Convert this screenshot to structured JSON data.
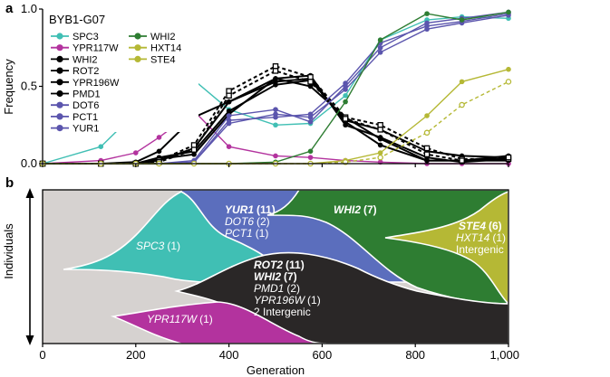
{
  "chart_data": [
    {
      "panel": "a",
      "type": "line",
      "title": "BYB1-G07",
      "xlabel": "",
      "ylabel": "Frequency",
      "xlim": [
        0,
        1000
      ],
      "ylim": [
        0,
        1.0
      ],
      "yticks": [
        "0.0",
        "0.5",
        "1.0"
      ],
      "legend": [
        [
          "SPC3",
          "YPR117W",
          "WHI2",
          "ROT2",
          "YPR196W",
          "PMD1",
          "DOT6",
          "PCT1",
          "YUR1"
        ],
        [
          "WHI2",
          "HXT14",
          "STE4"
        ]
      ],
      "series": [
        {
          "name": "SPC3",
          "color": "#40bfb4",
          "marker": "circle",
          "x": [
            0,
            125,
            200,
            250,
            325,
            400,
            500,
            575,
            650,
            725,
            825,
            900,
            1000
          ],
          "y": [
            0,
            0.11,
            0.33,
            0.45,
            0.54,
            0.35,
            0.25,
            0.26,
            0.44,
            0.8,
            0.93,
            0.95,
            0.94
          ]
        },
        {
          "name": "YPR117W",
          "color": "#b3339e",
          "marker": "circle",
          "x": [
            0,
            125,
            200,
            250,
            325,
            400,
            500,
            575,
            650,
            725,
            825,
            900,
            1000
          ],
          "y": [
            0,
            0.02,
            0.07,
            0.17,
            0.34,
            0.11,
            0.05,
            0.04,
            0.02,
            0.01,
            0,
            0,
            0
          ]
        },
        {
          "name": "WHI2",
          "color": "#000000",
          "marker": "circle",
          "x": [
            0,
            125,
            200,
            250,
            325,
            400,
            500,
            575,
            650,
            725,
            825,
            900,
            1000
          ],
          "y": [
            0,
            0,
            0.01,
            0.08,
            0.3,
            0.4,
            0.55,
            0.5,
            0.3,
            0.16,
            0.02,
            0.02,
            0.02
          ]
        },
        {
          "name": "ROT2",
          "color": "#000000",
          "marker": "circle",
          "x": [
            0,
            125,
            200,
            250,
            325,
            400,
            500,
            575,
            650,
            725,
            825,
            900,
            1000
          ],
          "y": [
            0,
            0,
            0,
            0.04,
            0.08,
            0.34,
            0.51,
            0.54,
            0.28,
            0.22,
            0.08,
            0.05,
            0.04
          ]
        },
        {
          "name": "YPR196W",
          "color": "#000000",
          "marker": "circle",
          "x": [
            0,
            125,
            200,
            250,
            325,
            400,
            500,
            575,
            650,
            725,
            825,
            900,
            1000
          ],
          "y": [
            0,
            0,
            0,
            0.03,
            0.06,
            0.32,
            0.55,
            0.57,
            0.25,
            0.17,
            0.04,
            0.01,
            0.03
          ]
        },
        {
          "name": "PMD1",
          "color": "#000000",
          "marker": "circle",
          "x": [
            0,
            125,
            200,
            250,
            325,
            400,
            500,
            575,
            650,
            725,
            825,
            900,
            1000
          ],
          "y": [
            0,
            0,
            0,
            0.02,
            0.1,
            0.4,
            0.53,
            0.55,
            0.27,
            0.12,
            0.02,
            0.02,
            0.05
          ]
        },
        {
          "name": "dashed-1",
          "color": "#000000",
          "marker": "square-open",
          "dashed": true,
          "x": [
            0,
            125,
            200,
            250,
            325,
            400,
            500,
            575,
            650,
            725,
            825,
            900,
            1000
          ],
          "y": [
            0,
            0,
            0,
            0.02,
            0.12,
            0.47,
            0.63,
            0.56,
            0.3,
            0.25,
            0.1,
            0.03,
            0.03
          ]
        },
        {
          "name": "dashed-2",
          "color": "#000000",
          "marker": "square-open",
          "dashed": true,
          "x": [
            0,
            125,
            200,
            250,
            325,
            400,
            500,
            575,
            650,
            725,
            825,
            900,
            1000
          ],
          "y": [
            0,
            0,
            0,
            0.01,
            0.09,
            0.44,
            0.6,
            0.53,
            0.29,
            0.22,
            0.06,
            0.02,
            0.04
          ]
        },
        {
          "name": "DOT6",
          "color": "#5b55ad",
          "marker": "circle",
          "x": [
            0,
            125,
            200,
            250,
            325,
            400,
            500,
            575,
            650,
            725,
            825,
            900,
            1000
          ],
          "y": [
            0,
            0,
            0,
            0,
            0.02,
            0.31,
            0.35,
            0.27,
            0.5,
            0.75,
            0.91,
            0.94,
            0.98
          ]
        },
        {
          "name": "PCT1",
          "color": "#5b55ad",
          "marker": "circle",
          "x": [
            0,
            125,
            200,
            250,
            325,
            400,
            500,
            575,
            650,
            725,
            825,
            900,
            1000
          ],
          "y": [
            0,
            0,
            0,
            0,
            0.01,
            0.28,
            0.3,
            0.32,
            0.52,
            0.78,
            0.89,
            0.92,
            0.97
          ]
        },
        {
          "name": "YUR1",
          "color": "#5b55ad",
          "marker": "circle",
          "x": [
            0,
            125,
            200,
            250,
            325,
            400,
            500,
            575,
            650,
            725,
            825,
            900,
            1000
          ],
          "y": [
            0,
            0,
            0,
            0,
            0.01,
            0.26,
            0.32,
            0.3,
            0.48,
            0.72,
            0.87,
            0.91,
            0.96
          ]
        },
        {
          "name": "WHI2",
          "color": "#2e7d32",
          "marker": "circle",
          "x": [
            0,
            125,
            200,
            250,
            325,
            400,
            500,
            575,
            650,
            725,
            825,
            900,
            1000
          ],
          "y": [
            0,
            0,
            0,
            0,
            0,
            0,
            0.01,
            0.08,
            0.4,
            0.8,
            0.97,
            0.93,
            0.98
          ]
        },
        {
          "name": "HXT14",
          "color": "#b5b835",
          "marker": "circle",
          "x": [
            0,
            125,
            200,
            250,
            325,
            400,
            500,
            575,
            650,
            725,
            825,
            900,
            1000
          ],
          "y": [
            0,
            0,
            0,
            0,
            0,
            0,
            0,
            0,
            0.02,
            0.07,
            0.31,
            0.53,
            0.61
          ]
        },
        {
          "name": "STE4",
          "color": "#b5b835",
          "marker": "circle-open",
          "dashed": true,
          "x": [
            0,
            125,
            200,
            250,
            325,
            400,
            500,
            575,
            650,
            725,
            825,
            900,
            1000
          ],
          "y": [
            0,
            0,
            0,
            0,
            0,
            0,
            0,
            0,
            0.01,
            0.04,
            0.2,
            0.38,
            0.53
          ]
        }
      ]
    },
    {
      "panel": "b",
      "type": "area",
      "title": "",
      "xlabel": "Generation",
      "ylabel": "Individuals",
      "xlim": [
        0,
        1000
      ],
      "xticks": [
        "0",
        "200",
        "400",
        "600",
        "800",
        "1,000"
      ],
      "background_color": "#d6d2d0",
      "clones": [
        {
          "id": "spc3",
          "color": "#40bfb4",
          "labels": [
            {
              "gene": "SPC3",
              "count": "(1)",
              "bold": false
            }
          ]
        },
        {
          "id": "ypr117w",
          "color": "#b3339e",
          "labels": [
            {
              "gene": "YPR117W",
              "count": "(1)",
              "bold": false
            }
          ]
        },
        {
          "id": "yur1",
          "color": "#5b6ebd",
          "labels": [
            {
              "gene": "YUR1",
              "count": "(11)",
              "bold": true
            },
            {
              "gene": "DOT6",
              "count": "(2)",
              "bold": false
            },
            {
              "gene": "PCT1",
              "count": "(1)",
              "bold": false
            }
          ]
        },
        {
          "id": "rot2",
          "color": "#2a2727",
          "labels": [
            {
              "gene": "ROT2",
              "count": "(11)",
              "bold": true
            },
            {
              "gene": "WHI2",
              "count": "(7)",
              "bold": true
            },
            {
              "gene": "PMD1",
              "count": "(2)",
              "bold": false
            },
            {
              "gene": "YPR196W",
              "count": "(1)",
              "bold": false
            },
            {
              "gene": "",
              "count": "2 Intergenic",
              "bold": false
            }
          ]
        },
        {
          "id": "whi2",
          "color": "#2e7d32",
          "labels": [
            {
              "gene": "WHI2",
              "count": "(7)",
              "bold": true
            }
          ]
        },
        {
          "id": "ste4",
          "color": "#b5b835",
          "labels": [
            {
              "gene": "STE4",
              "count": "(6)",
              "bold": true
            },
            {
              "gene": "HXT14",
              "count": "(1)",
              "bold": false
            },
            {
              "gene": "",
              "count": "Intergenic",
              "bold": false
            }
          ]
        }
      ]
    }
  ],
  "panel_labels": {
    "a": "a",
    "b": "b"
  }
}
